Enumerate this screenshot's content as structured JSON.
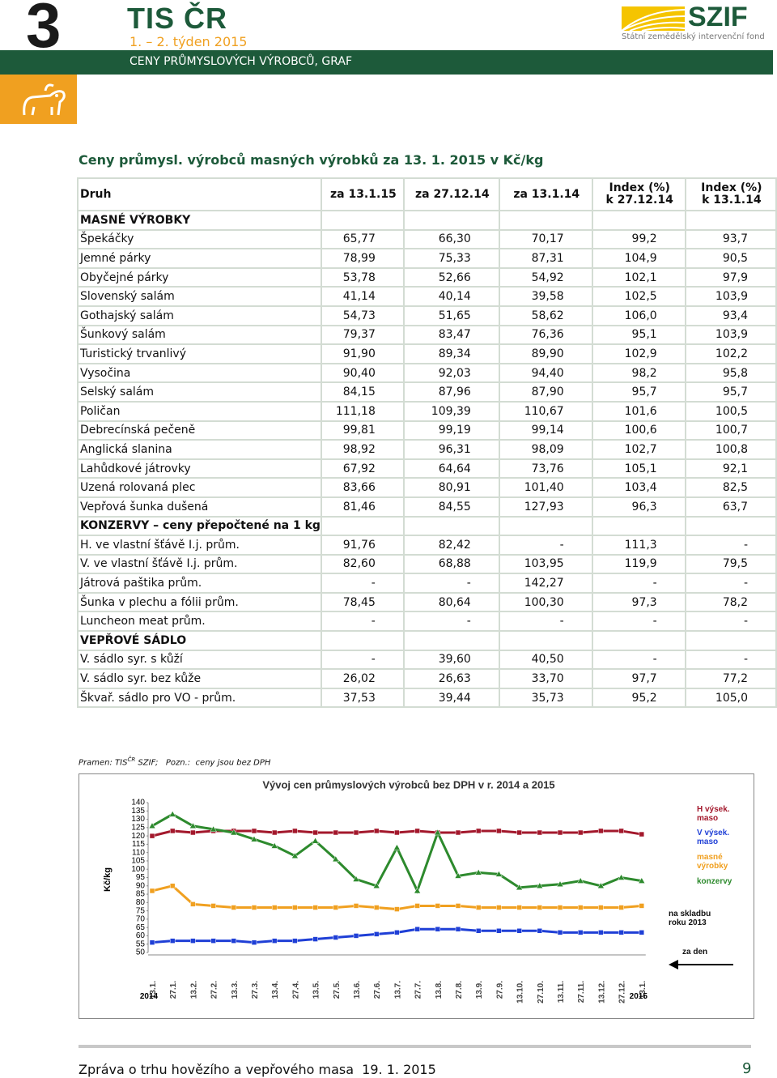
{
  "header": {
    "number": "3",
    "brand": "TIS ČR",
    "week": "1. – 2. týden 2015",
    "section": "CENY PRŮMYSLOVÝCH VÝROBCŮ, GRAF",
    "logo": "SZIF",
    "logo_subtitle": "Státní zemědělský intervenční fond"
  },
  "table_title": "Ceny průmysl. výrobců masných výrobků za 13. 1. 2015 v Kč/kg",
  "table": {
    "header": [
      [
        "Druh"
      ],
      [
        "za 13.1.15"
      ],
      [
        "za 27.12.14"
      ],
      [
        "za 13.1.14"
      ],
      [
        "Index (%)",
        "k 27.12.14"
      ],
      [
        "Index (%)",
        "k 13.1.14"
      ]
    ],
    "rows": [
      [
        "MASNÉ VÝROBKY"
      ],
      [
        "Špekáčky",
        "65,77",
        "66,30",
        "70,17",
        "99,2",
        "93,7"
      ],
      [
        "Jemné párky",
        "78,99",
        "75,33",
        "87,31",
        "104,9",
        "90,5"
      ],
      [
        "Obyčejné párky",
        "53,78",
        "52,66",
        "54,92",
        "102,1",
        "97,9"
      ],
      [
        "Slovenský salám",
        "41,14",
        "40,14",
        "39,58",
        "102,5",
        "103,9"
      ],
      [
        "Gothajský salám",
        "54,73",
        "51,65",
        "58,62",
        "106,0",
        "93,4"
      ],
      [
        "Šunkový salám",
        "79,37",
        "83,47",
        "76,36",
        "95,1",
        "103,9"
      ],
      [
        "Turistický trvanlivý",
        "91,90",
        "89,34",
        "89,90",
        "102,9",
        "102,2"
      ],
      [
        "Vysočina",
        "90,40",
        "92,03",
        "94,40",
        "98,2",
        "95,8"
      ],
      [
        "Selský salám",
        "84,15",
        "87,96",
        "87,90",
        "95,7",
        "95,7"
      ],
      [
        "Poličan",
        "111,18",
        "109,39",
        "110,67",
        "101,6",
        "100,5"
      ],
      [
        "Debrecínská pečeně",
        "99,81",
        "99,19",
        "99,14",
        "100,6",
        "100,7"
      ],
      [
        "Anglická slanina",
        "98,92",
        "96,31",
        "98,09",
        "102,7",
        "100,8"
      ],
      [
        "Lahůdkové játrovky",
        "67,92",
        "64,64",
        "73,76",
        "105,1",
        "92,1"
      ],
      [
        "Uzená rolovaná plec",
        "83,66",
        "80,91",
        "101,40",
        "103,4",
        "82,5"
      ],
      [
        "Vepřová šunka dušená",
        "81,46",
        "84,55",
        "127,93",
        "96,3",
        "63,7"
      ],
      [
        "KONZERVY – ceny přepočtené na 1 kg"
      ],
      [
        "H. ve vlastní šťávě I.j. prům.",
        "91,76",
        "82,42",
        "-",
        "111,3",
        "-"
      ],
      [
        "V. ve vlastní šťávě I.j. prům.",
        "82,60",
        "68,88",
        "103,95",
        "119,9",
        "79,5"
      ],
      [
        "Játrová paštika prům.",
        "-",
        "-",
        "142,27",
        "-",
        "-"
      ],
      [
        "Šunka v plechu a fólii prům.",
        "78,45",
        "80,64",
        "100,30",
        "97,3",
        "78,2"
      ],
      [
        "Luncheon meat prům.",
        "-",
        "-",
        "-",
        "-",
        "-"
      ],
      [
        "VEPŘOVÉ SÁDLO"
      ],
      [
        "V. sádlo syr. s kůží",
        "-",
        "39,60",
        "40,50",
        "-",
        "-"
      ],
      [
        "V. sádlo syr. bez kůže",
        "26,02",
        "26,63",
        "33,70",
        "97,7",
        "77,2"
      ],
      [
        "Škvař. sádlo pro VO - prům.",
        "37,53",
        "39,44",
        "35,73",
        "95,2",
        "105,0"
      ]
    ]
  },
  "source": {
    "label": "Pramen: TIS",
    "sup": "ČR",
    "org": "SZIF;",
    "note_label": "Pozn.:",
    "note": "ceny jsou bez DPH"
  },
  "chart_data": {
    "type": "line",
    "title": "Vývoj cen průmyslových výrobců bez DPH v r. 2014 a 2015",
    "y_label": "Kč/kg",
    "categories": [
      "13.1.",
      "27.1.",
      "13.2.",
      "27.2.",
      "13.3.",
      "27.3.",
      "13.4.",
      "27.4.",
      "13.5.",
      "27.5.",
      "13.6.",
      "27.6.",
      "13.7.",
      "27.7.",
      "13.8.",
      "27.8.",
      "13.9.",
      "27.9.",
      "13.10.",
      "27.10.",
      "13.11.",
      "27.11.",
      "13.12.",
      "27.12.",
      "13.1."
    ],
    "year_labels": [
      "2014",
      "2015"
    ],
    "ylim": [
      50,
      140
    ],
    "yticks": [
      50,
      55,
      60,
      65,
      70,
      75,
      80,
      85,
      90,
      95,
      100,
      105,
      110,
      115,
      120,
      125,
      130,
      135,
      140
    ],
    "series": [
      {
        "name": "H výsek. maso",
        "color": "#a3182c",
        "values": [
          120,
          123,
          122,
          123,
          123,
          123,
          122,
          123,
          122,
          122,
          122,
          123,
          122,
          123,
          122,
          122,
          123,
          123,
          122,
          122,
          122,
          122,
          123,
          123,
          121
        ]
      },
      {
        "name": "V výsek. maso",
        "color": "#1f3fd6",
        "values": [
          56,
          57,
          57,
          57,
          57,
          56,
          57,
          57,
          58,
          59,
          60,
          61,
          62,
          64,
          64,
          64,
          63,
          63,
          63,
          63,
          62,
          62,
          62,
          62,
          62
        ]
      },
      {
        "name": "masné výrobky",
        "color": "#f0a020",
        "values": [
          87,
          90,
          79,
          78,
          77,
          77,
          77,
          77,
          77,
          77,
          78,
          77,
          76,
          78,
          78,
          78,
          77,
          77,
          77,
          77,
          77,
          77,
          77,
          77,
          78
        ]
      },
      {
        "name": "konzervy",
        "color": "#2d8a2d",
        "values": [
          126,
          133,
          126,
          124,
          122,
          118,
          114,
          108,
          117,
          106,
          94,
          90,
          113,
          87,
          122,
          96,
          98,
          97,
          89,
          90,
          91,
          93,
          90,
          95,
          93
        ]
      }
    ],
    "annotations": [
      "na skladbu roku 2013",
      "za den"
    ]
  },
  "footer": {
    "text": "Zpráva o trhu hovězího a vepřového masa  19. 1. 2015",
    "page": "9"
  }
}
